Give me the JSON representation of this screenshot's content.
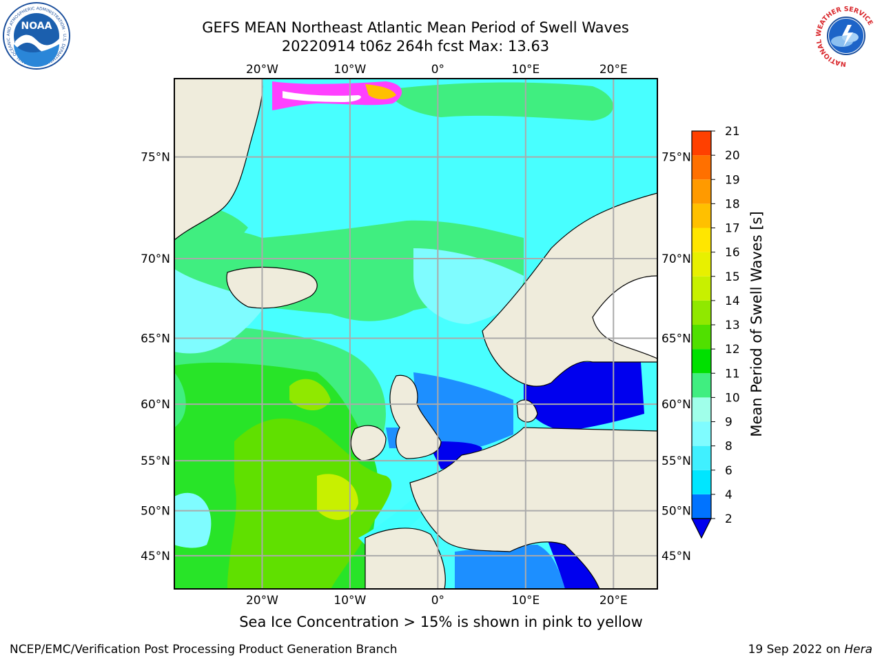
{
  "header": {
    "title_line_1": "GEFS MEAN Northeast Atlantic Mean Period of Swell Waves",
    "title_line_2": "20220914 t06z 264h fcst   Max: 13.63"
  },
  "logos": {
    "left": {
      "text": "NOAA",
      "ring_text": "NATIONAL OCEANIC AND ATMOSPHERIC ADMINISTRATION · U.S. DEPARTMENT OF COMMERCE",
      "color": "#1b4f9c"
    },
    "right": {
      "text": "NATIONAL WEATHER SERVICE",
      "color": "#d9262b"
    }
  },
  "map": {
    "lon_range": [
      -30,
      25
    ],
    "lat_range": [
      41,
      78
    ],
    "projection": "mercator",
    "lon_ticks": [
      {
        "value": -20,
        "label": "20°W"
      },
      {
        "value": -10,
        "label": "10°W"
      },
      {
        "value": 0,
        "label": "0°"
      },
      {
        "value": 10,
        "label": "10°E"
      },
      {
        "value": 20,
        "label": "20°E"
      }
    ],
    "lat_ticks": [
      {
        "value": 75,
        "label": "75°N"
      },
      {
        "value": 70,
        "label": "70°N"
      },
      {
        "value": 65,
        "label": "65°N"
      },
      {
        "value": 60,
        "label": "60°N"
      },
      {
        "value": 55,
        "label": "55°N"
      },
      {
        "value": 50,
        "label": "50°N"
      },
      {
        "value": 45,
        "label": "45°N"
      }
    ],
    "land_color": "#efecdc",
    "grid_color": "#aaaaaa"
  },
  "colorbar": {
    "label": "Mean Period of Swell Waves [s]",
    "tick_labels": [
      "2",
      "4",
      "6",
      "8",
      "9",
      "10",
      "11",
      "12",
      "13",
      "14",
      "15",
      "16",
      "17",
      "18",
      "19",
      "20",
      "21"
    ],
    "colors": [
      "#0073ff",
      "#00e6ff",
      "#40f0ff",
      "#7ffcff",
      "#a0ffea",
      "#40ee80",
      "#00e000",
      "#50e000",
      "#90e800",
      "#c8f000",
      "#e8f000",
      "#ffe600",
      "#ffc000",
      "#ff9a00",
      "#ff7000",
      "#ff4000",
      "#ff1800"
    ],
    "under_color": "#0000ee"
  },
  "caption": "Sea Ice Concentration > 15% is shown in pink to yellow",
  "footer": {
    "left": "NCEP/EMC/Verification Post Processing Product Generation Branch",
    "right_prefix": "19 Sep 2022 on ",
    "right_italic": "Hera"
  }
}
